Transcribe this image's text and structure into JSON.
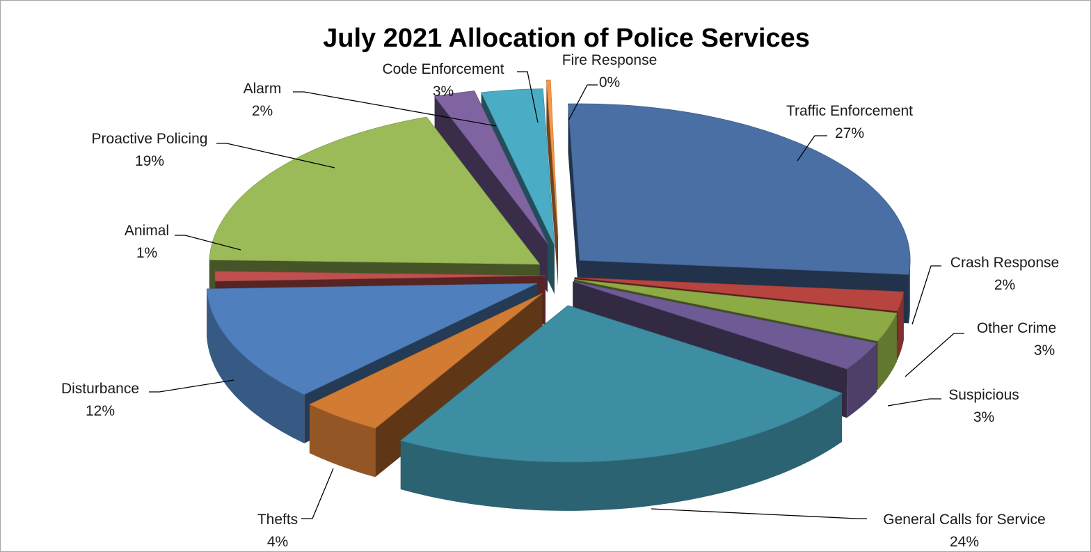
{
  "chart_data": {
    "type": "pie",
    "variant": "3d-exploded",
    "title": "July 2021 Allocation of Police Services",
    "slices": [
      {
        "label": "Traffic Enforcement",
        "value_label": "27%",
        "value": 27,
        "color": "#4a6fa5"
      },
      {
        "label": "Crash Response",
        "value_label": "2%",
        "value": 2,
        "color": "#b84440"
      },
      {
        "label": "Other Crime",
        "value_label": "3%",
        "value": 3,
        "color": "#8cab45"
      },
      {
        "label": "Suspicious",
        "value_label": "3%",
        "value": 3,
        "color": "#6e5a94"
      },
      {
        "label": "General Calls for Service",
        "value_label": "24%",
        "value": 24,
        "color": "#3d8ea3"
      },
      {
        "label": "Thefts",
        "value_label": "4%",
        "value": 4,
        "color": "#d27b33"
      },
      {
        "label": "Disturbance",
        "value_label": "12%",
        "value": 12,
        "color": "#4f80bd"
      },
      {
        "label": "Animal",
        "value_label": "1%",
        "value": 1,
        "color": "#c0504d"
      },
      {
        "label": "Proactive Policing",
        "value_label": "19%",
        "value": 19,
        "color": "#9bbb59"
      },
      {
        "label": "Alarm",
        "value_label": "2%",
        "value": 2,
        "color": "#8064a2"
      },
      {
        "label": "Code Enforcement",
        "value_label": "3%",
        "value": 3,
        "color": "#4bacc6"
      },
      {
        "label": "Fire Response",
        "value_label": "0%",
        "value": 0,
        "color": "#f79646"
      }
    ]
  }
}
